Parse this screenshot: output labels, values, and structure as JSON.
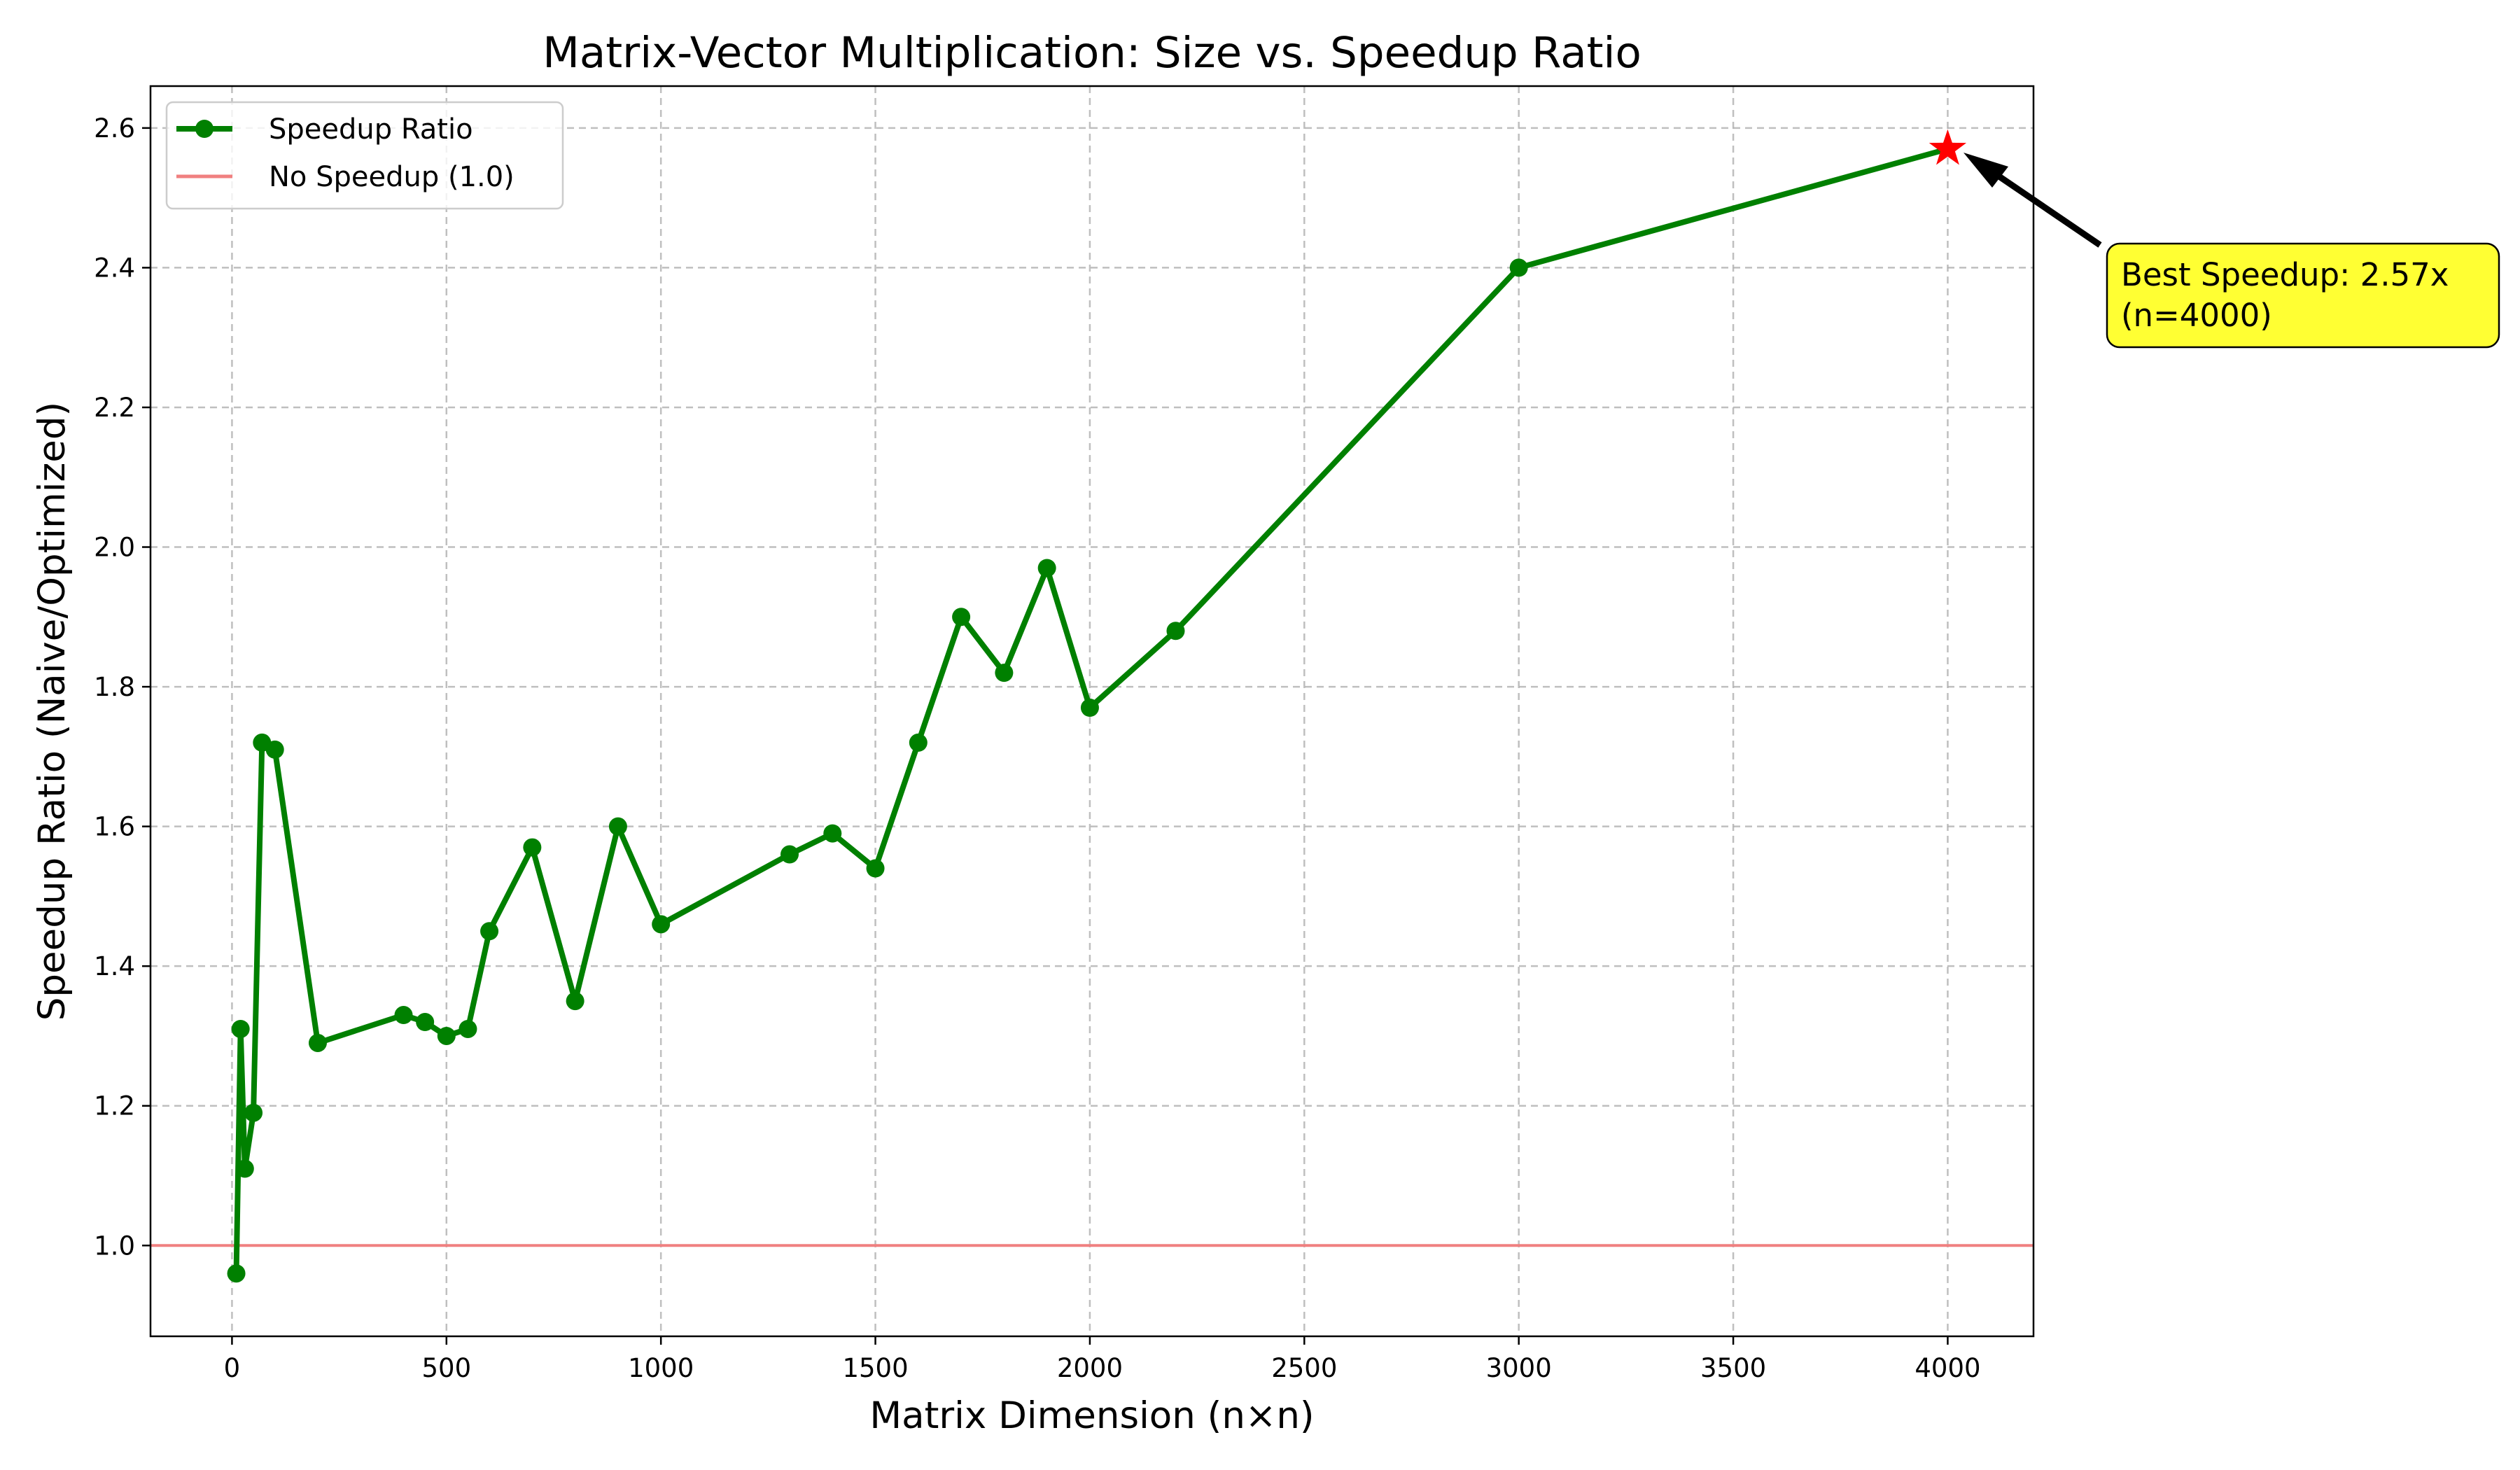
{
  "chart_data": {
    "type": "line",
    "title": "Matrix-Vector Multiplication: Size vs. Speedup Ratio",
    "xlabel": "Matrix Dimension (n×n)",
    "ylabel": "Speedup Ratio (Naive/Optimized)",
    "xlim": [
      -190,
      4200
    ],
    "ylim": [
      0.87,
      2.66
    ],
    "xticks": [
      0,
      500,
      1000,
      1500,
      2000,
      2500,
      3000,
      3500,
      4000
    ],
    "yticks": [
      1.0,
      1.2,
      1.4,
      1.6,
      1.8,
      2.0,
      2.2,
      2.4,
      2.6
    ],
    "xtick_labels": [
      "0",
      "500",
      "1000",
      "1500",
      "2000",
      "2500",
      "3000",
      "3500",
      "4000"
    ],
    "ytick_labels": [
      "1.0",
      "1.2",
      "1.4",
      "1.6",
      "1.8",
      "2.0",
      "2.2",
      "2.4",
      "2.6"
    ],
    "grid": true,
    "legend_position": "top-left",
    "series": [
      {
        "name": "Speedup Ratio",
        "color": "#008000",
        "marker": "circle",
        "x": [
          10,
          20,
          30,
          50,
          70,
          100,
          200,
          400,
          450,
          500,
          550,
          600,
          700,
          800,
          900,
          1000,
          1300,
          1400,
          1500,
          1600,
          1700,
          1800,
          1900,
          2000,
          2200,
          3000,
          4000
        ],
        "y": [
          0.96,
          1.31,
          1.11,
          1.19,
          1.72,
          1.71,
          1.29,
          1.33,
          1.32,
          1.3,
          1.31,
          1.45,
          1.57,
          1.35,
          1.6,
          1.46,
          1.56,
          1.59,
          1.54,
          1.72,
          1.9,
          1.82,
          1.97,
          1.77,
          1.88,
          2.4,
          2.57
        ]
      }
    ],
    "reference_line": {
      "name": "No Speedup (1.0)",
      "y": 1.0,
      "color": "#f08080"
    },
    "highlight": {
      "x": 4000,
      "y": 2.57,
      "marker": "star",
      "color": "#ff0000"
    },
    "annotation": {
      "lines": [
        "Best Speedup: 2.57x",
        "(n=4000)"
      ],
      "box_color": "#ffff33",
      "arrow_color": "#000000"
    }
  }
}
